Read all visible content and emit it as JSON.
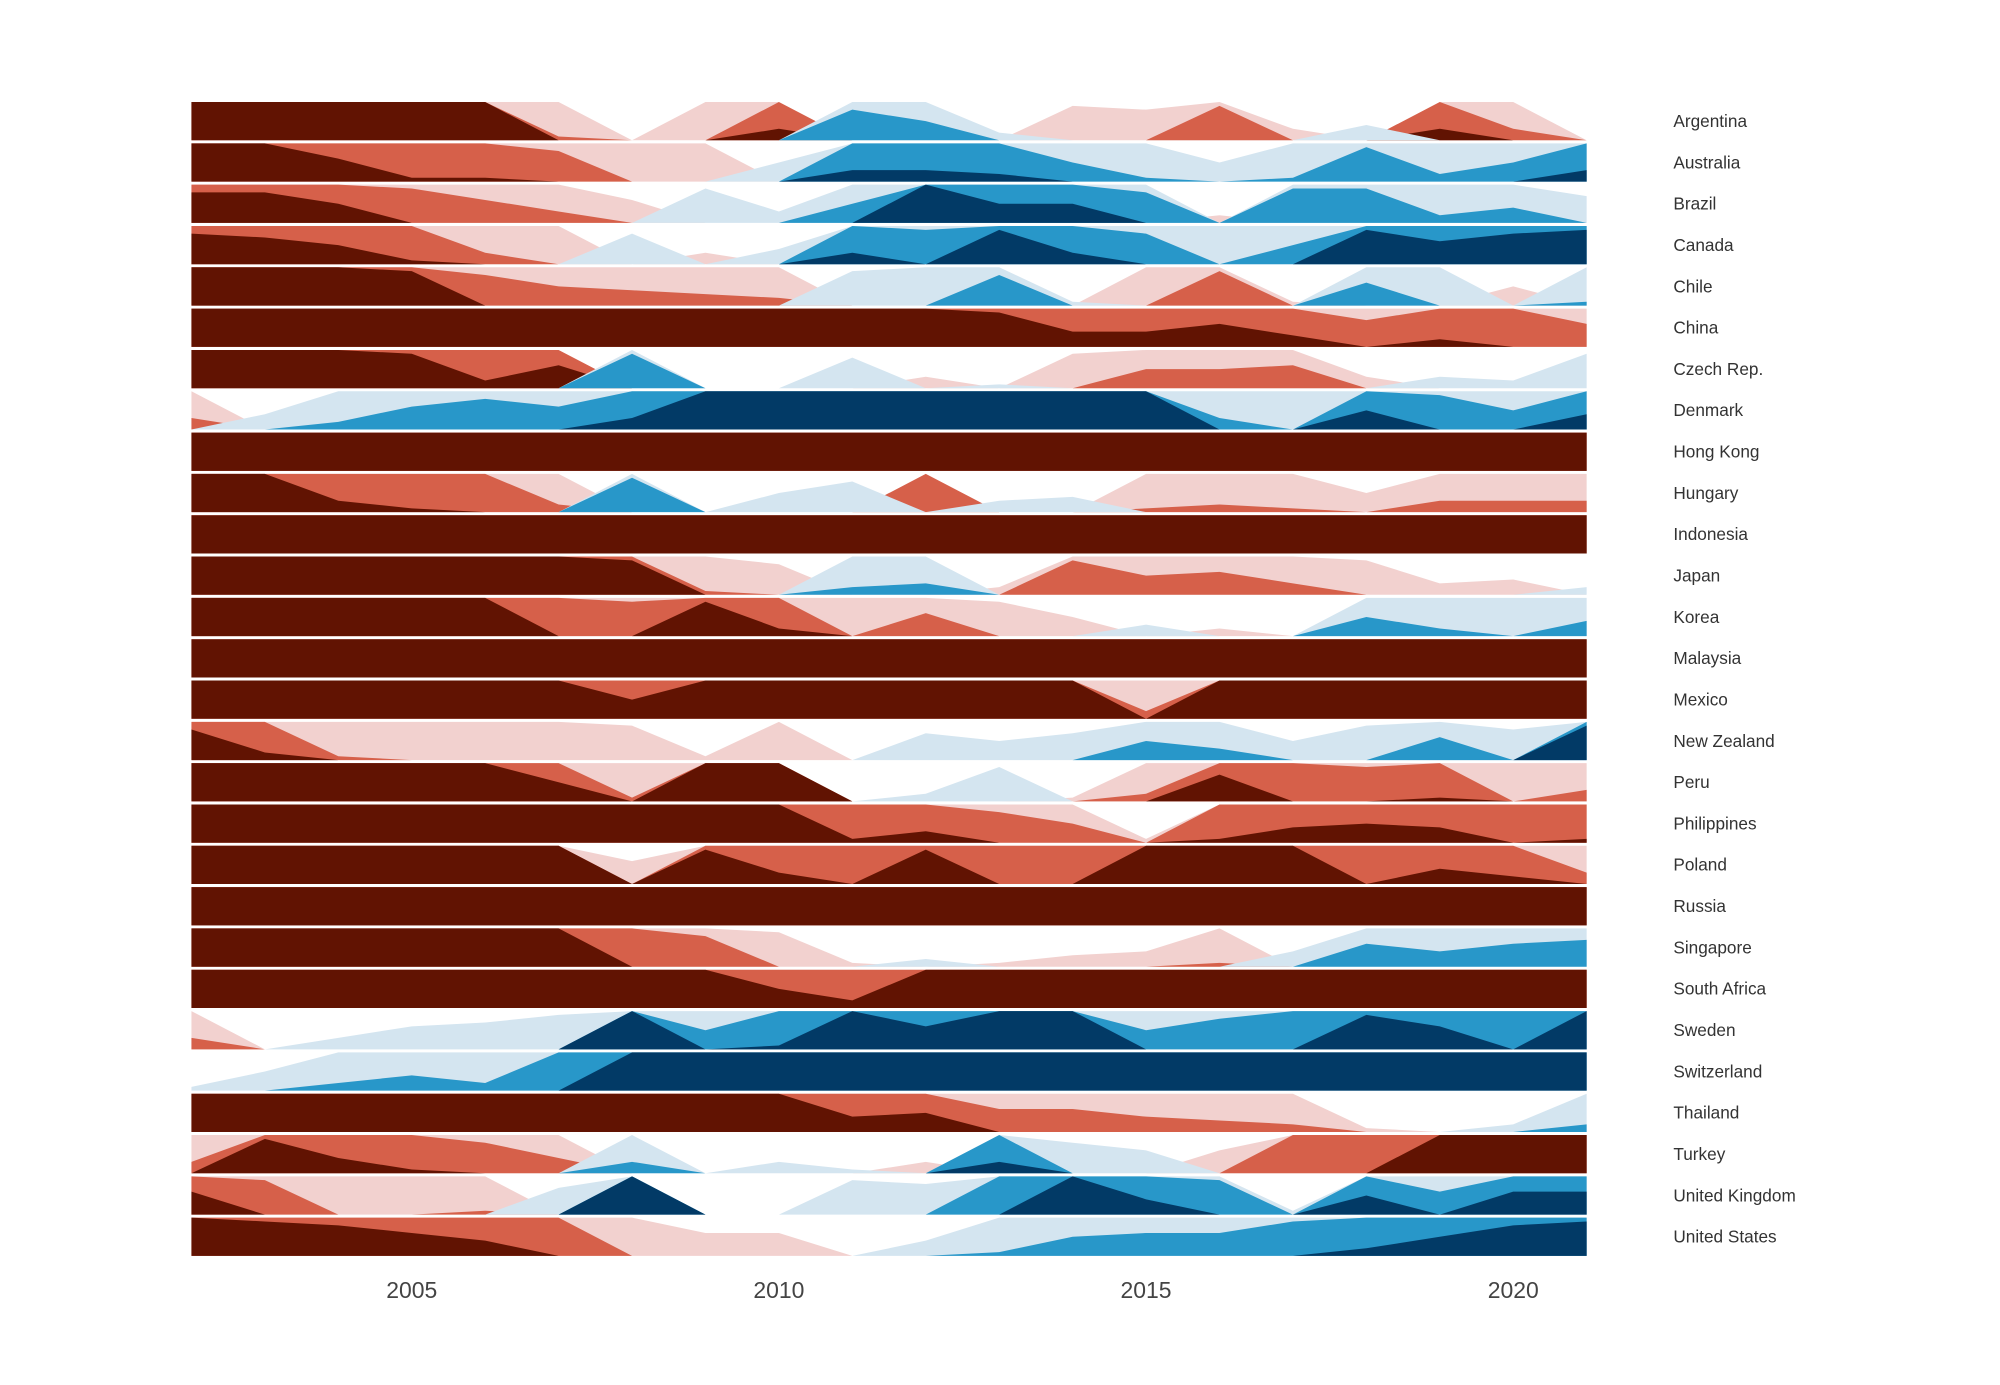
{
  "chart_data": {
    "type": "horizon",
    "x": [
      2002,
      2003,
      2004,
      2005,
      2006,
      2007,
      2008,
      2009,
      2010,
      2011,
      2012,
      2013,
      2014,
      2015,
      2016,
      2017,
      2018,
      2019,
      2020,
      2021
    ],
    "xlim": [
      2002,
      2021
    ],
    "xticks": [
      2005,
      2010,
      2015,
      2020
    ],
    "ylim": [
      -3,
      3
    ],
    "positive_colors": [
      "#d4e5f0",
      "#2897c9",
      "#023a66"
    ],
    "negative_colors": [
      "#f2d1cf",
      "#d6604a",
      "#611302"
    ],
    "series": [
      {
        "name": "Argentina",
        "values": [
          -3,
          -3,
          -3,
          -3,
          -3,
          -1.1,
          0,
          -1,
          -2.3,
          1.8,
          1.5,
          0.2,
          -0.9,
          -0.8,
          -1.9,
          -0.3,
          0.4,
          -2.3,
          -1.3,
          0
        ]
      },
      {
        "name": "Australia",
        "values": [
          -3,
          -3,
          -2.6,
          -2.1,
          -2.1,
          -1.8,
          -1,
          -1,
          0.5,
          2.3,
          2.3,
          2.2,
          1.5,
          1.1,
          0.5,
          1.1,
          1.9,
          1.2,
          1.5,
          2.3
        ]
      },
      {
        "name": "Brazil",
        "values": [
          -2.8,
          -2.8,
          -2.5,
          -1.9,
          -1.6,
          -1.3,
          -0.6,
          0.9,
          0.3,
          1.5,
          3,
          2.5,
          2.5,
          1.8,
          -0.2,
          1.9,
          1.9,
          1.2,
          1.4,
          0.7
        ]
      },
      {
        "name": "Canada",
        "values": [
          -2.8,
          -2.7,
          -2.5,
          -2.1,
          -1.3,
          -1,
          0.8,
          -0.3,
          0.4,
          2.3,
          1.9,
          2.9,
          2.3,
          1.8,
          1,
          1.5,
          2.9,
          2.6,
          2.8,
          2.9
        ]
      },
      {
        "name": "Chile",
        "values": [
          -3,
          -3,
          -3,
          -2.9,
          -1.8,
          -1.5,
          -1.4,
          -1.3,
          -1.2,
          0.9,
          1,
          1.8,
          0.1,
          -1,
          -1.9,
          -0.1,
          1.6,
          1,
          -0.5,
          1.1
        ]
      },
      {
        "name": "China",
        "values": [
          -3,
          -3,
          -3,
          -3,
          -3,
          -3,
          -3,
          -3,
          -3,
          -3,
          -3,
          -2.9,
          -2.4,
          -2.4,
          -2.6,
          -2.3,
          -1.7,
          -2.2,
          -2,
          -1.6
        ]
      },
      {
        "name": "Czech Rep.",
        "values": [
          -3,
          -3,
          -3,
          -2.9,
          -2.2,
          -2.6,
          1.9,
          0,
          0,
          0.8,
          -0.3,
          0.1,
          -0.9,
          -1.5,
          -1.5,
          -1.6,
          -0.3,
          0.3,
          0.2,
          0.9
        ]
      },
      {
        "name": "Denmark",
        "values": [
          -1.3,
          0.4,
          1.2,
          1.6,
          1.8,
          1.6,
          2.3,
          3,
          3,
          3,
          3,
          3,
          3,
          3,
          1.3,
          1,
          2.5,
          1.9,
          1.5,
          2.4
        ]
      },
      {
        "name": "Hong Kong",
        "values": [
          -3,
          -3,
          -3,
          -3,
          -3,
          -3,
          -3,
          -3,
          -3,
          -3,
          -3,
          -3,
          -3,
          -3,
          -3,
          -3,
          -3,
          -3,
          -3,
          -3
        ]
      },
      {
        "name": "Hungary",
        "values": [
          -3,
          -3,
          -2.3,
          -2.1,
          -2,
          -1.2,
          1.9,
          0,
          0.5,
          0.8,
          -2,
          0.3,
          0.4,
          -1.1,
          -1.2,
          -1.1,
          -0.5,
          -1.3,
          -1.3,
          -1.3
        ]
      },
      {
        "name": "Indonesia",
        "values": [
          -3,
          -3,
          -3,
          -3,
          -3,
          -3,
          -3,
          -3,
          -3,
          -3,
          -3,
          -3,
          -3,
          -3,
          -3,
          -3,
          -3,
          -3,
          -3,
          -3
        ]
      },
      {
        "name": "Japan",
        "values": [
          -3,
          -3,
          -3,
          -3,
          -3,
          -3,
          -2.9,
          -1.1,
          -0.8,
          1.2,
          1.3,
          -0.2,
          -1.9,
          -1.5,
          -1.6,
          -1.3,
          -0.9,
          -0.3,
          -0.4,
          0.2
        ]
      },
      {
        "name": "Korea",
        "values": [
          -3,
          -3,
          -3,
          -3,
          -3,
          -2,
          -1.9,
          -2.9,
          -2.2,
          -1,
          -1.6,
          -0.9,
          -0.5,
          0.3,
          -0.2,
          0,
          1.5,
          1.2,
          1,
          1.4
        ]
      },
      {
        "name": "Malaysia",
        "values": [
          -3,
          -3,
          -3,
          -3,
          -3,
          -3,
          -3,
          -3,
          -3,
          -3,
          -3,
          -3,
          -3,
          -3,
          -3,
          -3,
          -3,
          -3,
          -3,
          -3
        ]
      },
      {
        "name": "Mexico",
        "values": [
          -3,
          -3,
          -3,
          -3,
          -3,
          -3,
          -2.5,
          -3,
          -3,
          -3,
          -3,
          -3,
          -3,
          -1.2,
          -3,
          -3,
          -3,
          -3,
          -3,
          -3
        ]
      },
      {
        "name": "New Zealand",
        "values": [
          -2.8,
          -2.2,
          -1.1,
          -1,
          -1,
          -1,
          -0.9,
          -0.1,
          -1,
          0,
          0.7,
          0.5,
          0.7,
          1.5,
          1.3,
          0.5,
          0.9,
          1.6,
          0.8,
          2.9
        ]
      },
      {
        "name": "Peru",
        "values": [
          -3,
          -3,
          -3,
          -3,
          -3,
          -2.5,
          -1.1,
          -3,
          -3,
          0,
          0.2,
          0.9,
          -0.1,
          -1.2,
          -2.7,
          -2,
          -1.9,
          -2.1,
          -1,
          -1.3
        ]
      },
      {
        "name": "Philippines",
        "values": [
          -3,
          -3,
          -3,
          -3,
          -3,
          -3,
          -3,
          -3,
          -3,
          -2.1,
          -2.3,
          -1.8,
          -1.5,
          -0.1,
          -2.1,
          -2.4,
          -2.5,
          -2.4,
          -2,
          -2.1
        ]
      },
      {
        "name": "Poland",
        "values": [
          -3,
          -3,
          -3,
          -3,
          -3,
          -3,
          -0.6,
          -2.9,
          -2.3,
          -2,
          -2.9,
          -2,
          -2,
          -3,
          -3,
          -3,
          -2,
          -2.4,
          -2.2,
          -1.3
        ]
      },
      {
        "name": "Russia",
        "values": [
          -3,
          -3,
          -3,
          -3,
          -3,
          -3,
          -3,
          -3,
          -3,
          -3,
          -3,
          -3,
          -3,
          -3,
          -3,
          -3,
          -3,
          -3,
          -3,
          -3
        ]
      },
      {
        "name": "Singapore",
        "values": [
          -3,
          -3,
          -3,
          -3,
          -3,
          -3,
          -2,
          -1.8,
          -0.9,
          -0.1,
          0.2,
          -0.1,
          -0.3,
          -0.4,
          -1.1,
          0.4,
          1.6,
          1.4,
          1.6,
          1.7
        ]
      },
      {
        "name": "South Africa",
        "values": [
          -3,
          -3,
          -3,
          -3,
          -3,
          -3,
          -3,
          -3,
          -2.5,
          -2.2,
          -3,
          -3,
          -3,
          -3,
          -3,
          -3,
          -3,
          -3,
          -3,
          -3
        ]
      },
      {
        "name": "Sweden",
        "values": [
          -1.3,
          0,
          0.3,
          0.6,
          0.7,
          0.9,
          3,
          1.5,
          2.1,
          3,
          2.6,
          3,
          3,
          1.5,
          1.8,
          2,
          2.9,
          2.6,
          2,
          3
        ]
      },
      {
        "name": "Switzerland",
        "values": [
          0.1,
          0.5,
          1.2,
          1.4,
          1.2,
          2,
          3,
          3,
          3,
          3,
          3,
          3,
          3,
          3,
          3,
          3,
          3,
          3,
          3,
          3
        ]
      },
      {
        "name": "Thailand",
        "values": [
          -3,
          -3,
          -3,
          -3,
          -3,
          -3,
          -3,
          -3,
          -3,
          -2.4,
          -2.5,
          -1.6,
          -1.6,
          -1.4,
          -1.3,
          -1.2,
          -0.1,
          0,
          0.2,
          1.2
        ]
      },
      {
        "name": "Turkey",
        "values": [
          -1.3,
          -2.9,
          -2.4,
          -2.1,
          -1.8,
          -1.4,
          1.3,
          0,
          0.3,
          0.1,
          -0.3,
          2.3,
          0.8,
          0.6,
          -0.6,
          -2,
          -2,
          -3,
          -3,
          -3
        ]
      },
      {
        "name": "United Kingdom",
        "values": [
          -2.6,
          -1.9,
          -1,
          -1,
          -1.1,
          0.7,
          3,
          0,
          0,
          0.9,
          0.8,
          2,
          3,
          2.4,
          1.9,
          0.1,
          2.5,
          1.6,
          2.6,
          2.6
        ]
      },
      {
        "name": "United States",
        "values": [
          -3,
          -2.9,
          -2.8,
          -2.6,
          -2.4,
          -2,
          -1,
          -0.6,
          -0.6,
          0,
          0.4,
          1.1,
          1.5,
          1.6,
          1.6,
          1.9,
          2.2,
          2.5,
          2.8,
          2.9
        ]
      }
    ]
  }
}
